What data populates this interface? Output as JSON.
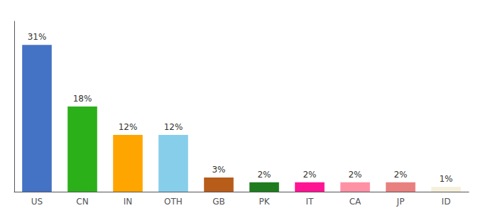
{
  "chart_data": {
    "type": "bar",
    "categories": [
      "US",
      "CN",
      "IN",
      "OTH",
      "GB",
      "PK",
      "IT",
      "CA",
      "JP",
      "ID"
    ],
    "values": [
      31,
      18,
      12,
      12,
      3,
      2,
      2,
      2,
      2,
      1
    ],
    "value_labels": [
      "31%",
      "18%",
      "12%",
      "12%",
      "3%",
      "2%",
      "2%",
      "2%",
      "2%",
      "1%"
    ],
    "colors": [
      "#4472C4",
      "#2CB01A",
      "#FFA500",
      "#87CEEB",
      "#B85C1A",
      "#1E7B1E",
      "#FF1493",
      "#FF91A4",
      "#E88080",
      "#F5F0DC"
    ],
    "ylim": [
      0,
      36
    ],
    "data_labels": true,
    "tick_labels": "x",
    "grid": false
  }
}
